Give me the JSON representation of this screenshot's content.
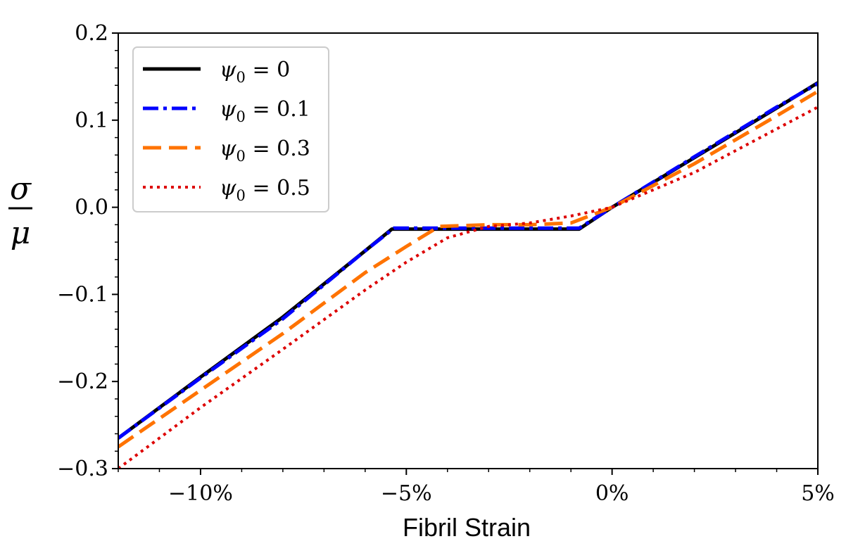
{
  "chart_data": {
    "type": "line",
    "xlabel": "Fibril Strain",
    "ylabel": {
      "numerator": "σ",
      "denominator": "μ"
    },
    "xlim": [
      -12,
      5
    ],
    "ylim": [
      -0.3,
      0.2
    ],
    "x_unit": "%",
    "xticks": [
      {
        "value": -10,
        "label": "−10%"
      },
      {
        "value": -5,
        "label": "−5%"
      },
      {
        "value": 0,
        "label": "0%"
      },
      {
        "value": 5,
        "label": "5%"
      }
    ],
    "yticks": [
      {
        "value": 0.2,
        "label": "0.2"
      },
      {
        "value": 0.1,
        "label": "0.1"
      },
      {
        "value": 0.0,
        "label": "0.0"
      },
      {
        "value": -0.1,
        "label": "−0.1"
      },
      {
        "value": -0.2,
        "label": "−0.2"
      },
      {
        "value": -0.3,
        "label": "−0.3"
      }
    ],
    "grid": false,
    "legend_position": "top-left",
    "series": [
      {
        "name": "ψ0 = 0",
        "legend": {
          "sym": "ψ",
          "sub": "0",
          "rest": " = 0"
        },
        "color": "#000000",
        "style": "solid",
        "x": [
          -12,
          -10,
          -8,
          -6,
          -5.35,
          -4,
          -2,
          -0.8,
          0,
          2,
          4,
          5
        ],
        "y": [
          -0.265,
          -0.195,
          -0.126,
          -0.05,
          -0.025,
          -0.025,
          -0.025,
          -0.025,
          0.0,
          0.057,
          0.114,
          0.143
        ]
      },
      {
        "name": "ψ0 = 0.1",
        "legend": {
          "sym": "ψ",
          "sub": "0",
          "rest": " = 0.1"
        },
        "color": "#0000ff",
        "style": "dashdot",
        "x": [
          -12,
          -10,
          -8,
          -6,
          -5.3,
          -4,
          -2,
          -0.8,
          0,
          2,
          4,
          5
        ],
        "y": [
          -0.265,
          -0.196,
          -0.128,
          -0.05,
          -0.024,
          -0.024,
          -0.024,
          -0.024,
          0.0,
          0.058,
          0.115,
          0.142
        ]
      },
      {
        "name": "ψ0 = 0.3",
        "legend": {
          "sym": "ψ",
          "sub": "0",
          "rest": " = 0.3"
        },
        "color": "#ff7300",
        "style": "dashed",
        "x": [
          -12,
          -10,
          -8,
          -6,
          -5,
          -4.2,
          -3,
          -2,
          -1,
          0,
          2,
          4,
          5
        ],
        "y": [
          -0.275,
          -0.21,
          -0.145,
          -0.075,
          -0.045,
          -0.022,
          -0.02,
          -0.02,
          -0.018,
          0.0,
          0.05,
          0.105,
          0.133
        ]
      },
      {
        "name": "ψ0 = 0.5",
        "legend": {
          "sym": "ψ",
          "sub": "0",
          "rest": " = 0.5"
        },
        "color": "#dd0000",
        "style": "dotted",
        "x": [
          -12,
          -10,
          -8,
          -6,
          -5,
          -4,
          -3,
          -2,
          -1,
          0,
          2,
          4,
          5
        ],
        "y": [
          -0.3,
          -0.23,
          -0.163,
          -0.095,
          -0.063,
          -0.035,
          -0.022,
          -0.018,
          -0.01,
          0.0,
          0.04,
          0.09,
          0.115
        ]
      }
    ]
  }
}
